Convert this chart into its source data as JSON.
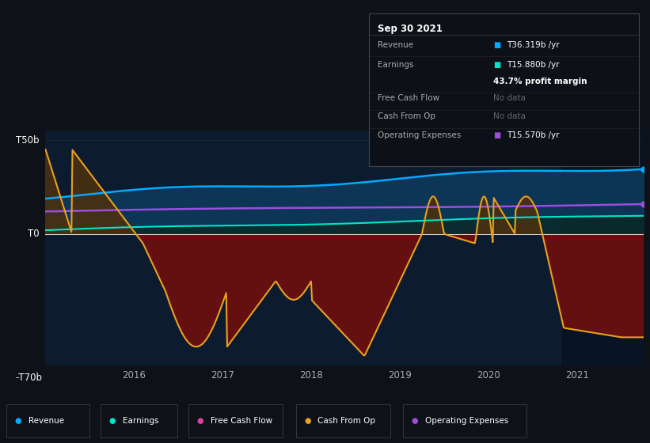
{
  "bg_color": "#0e1117",
  "plot_bg_color": "#0d1b2e",
  "ylim": [
    -70,
    55
  ],
  "xlim_start": 2015.0,
  "xlim_end": 2021.75,
  "ytick_labels": [
    "-Т70b",
    "Т0",
    "Т50b"
  ],
  "ytick_values": [
    -70,
    0,
    50
  ],
  "xtick_years": [
    2016,
    2017,
    2018,
    2019,
    2020,
    2021
  ],
  "revenue_color": "#00aaff",
  "earnings_color": "#00e5cc",
  "cashfromop_color": "#e8a020",
  "opex_color": "#9b4de0",
  "freecashflow_color": "#e040a0",
  "legend_items": [
    {
      "label": "Revenue",
      "color": "#00aaff"
    },
    {
      "label": "Earnings",
      "color": "#00e5cc"
    },
    {
      "label": "Free Cash Flow",
      "color": "#e040a0"
    },
    {
      "label": "Cash From Op",
      "color": "#e8a020"
    },
    {
      "label": "Operating Expenses",
      "color": "#9b4de0"
    }
  ],
  "tooltip_title": "Sep 30 2021",
  "tooltip_rows": [
    {
      "label": "Revenue",
      "value": "Т36.319b /yr",
      "color": "#00aaff"
    },
    {
      "label": "Earnings",
      "value": "Т15.880b /yr",
      "color": "#00e5cc"
    },
    {
      "label": "",
      "value": "43.7% profit margin",
      "color": "white"
    },
    {
      "label": "Free Cash Flow",
      "value": "No data",
      "color": "#666666"
    },
    {
      "label": "Cash From Op",
      "value": "No data",
      "color": "#666666"
    },
    {
      "label": "Operating Expenses",
      "value": "Т15.570b /yr",
      "color": "#9b4de0"
    }
  ]
}
